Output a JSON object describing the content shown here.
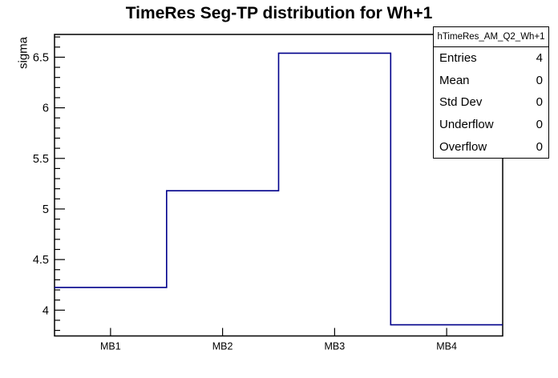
{
  "page_title": "TimeRes Seg-TP distribution for Wh+1",
  "chart_data": {
    "type": "bar",
    "subtype": "root-step-histogram",
    "title": "TimeRes Seg-TP distribution for Wh+1",
    "xlabel": "",
    "ylabel": "sigma",
    "categories": [
      "MB1",
      "MB2",
      "MB3",
      "MB4"
    ],
    "values": [
      4.225,
      5.18,
      6.54,
      3.855
    ],
    "ylim": [
      3.745,
      6.725
    ],
    "y_major_ticks": [
      4,
      4.5,
      5,
      5.5,
      6,
      6.5
    ],
    "y_minor_step": 0.1,
    "grid": false,
    "legend_position": "top-right-stats-box",
    "line_color": "#00008b",
    "frame_color": "#000000",
    "background_color": "#ffffff"
  },
  "stats_box": {
    "header": "hTimeRes_AM_Q2_Wh+1",
    "rows": [
      {
        "label": "Entries",
        "value": "4"
      },
      {
        "label": "Mean",
        "value": "0"
      },
      {
        "label": "Std Dev",
        "value": "0"
      },
      {
        "label": "Underflow",
        "value": "0"
      },
      {
        "label": "Overflow",
        "value": "0"
      }
    ]
  }
}
